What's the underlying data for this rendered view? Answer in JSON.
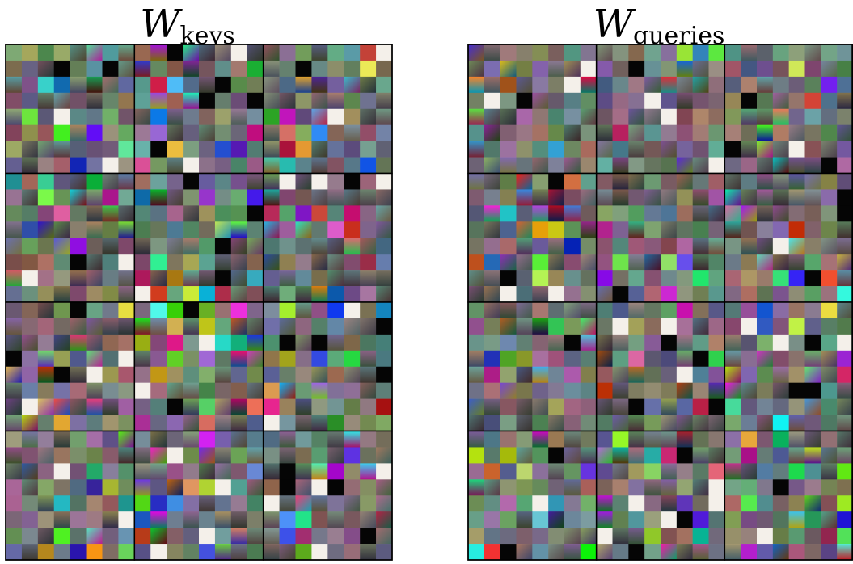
{
  "panels": [
    {
      "title": "W",
      "subscript": "keys"
    },
    {
      "title": "W",
      "subscript": "queries"
    }
  ]
}
